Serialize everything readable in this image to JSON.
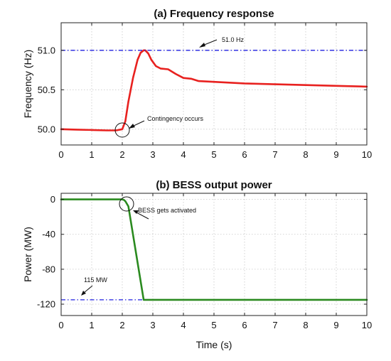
{
  "chart_data": [
    {
      "type": "line",
      "title": "(a) Frequency response",
      "xlabel": "",
      "ylabel": "Frequency (Hz)",
      "xlim": [
        0,
        10
      ],
      "ylim": [
        49.8,
        51.35
      ],
      "xticks": [
        "0",
        "1",
        "2",
        "3",
        "4",
        "5",
        "6",
        "7",
        "8",
        "9",
        "10"
      ],
      "yticks": [
        "50.0",
        "50.5",
        "51.0"
      ],
      "ytick_values": [
        50.0,
        50.5,
        51.0
      ],
      "grid": true,
      "series": [
        {
          "color": "#e8211f",
          "style": "solid",
          "x": [
            0,
            0.5,
            1.0,
            1.5,
            1.8,
            2.0,
            2.1,
            2.2,
            2.35,
            2.5,
            2.6,
            2.7,
            2.75,
            2.85,
            2.95,
            3.1,
            3.25,
            3.5,
            3.75,
            4.0,
            4.25,
            4.5,
            5.0,
            6.0,
            7.0,
            8.0,
            9.0,
            10.0
          ],
          "y": [
            50.0,
            49.995,
            49.99,
            49.985,
            49.985,
            50.0,
            50.1,
            50.35,
            50.65,
            50.88,
            50.97,
            51.0,
            51.0,
            50.96,
            50.88,
            50.8,
            50.77,
            50.76,
            50.7,
            50.65,
            50.64,
            50.61,
            50.6,
            50.58,
            50.57,
            50.56,
            50.55,
            50.54
          ]
        },
        {
          "color": "#1f1fe0",
          "style": "dashdot",
          "x": [
            0,
            10
          ],
          "y": [
            51.0,
            51.0
          ]
        }
      ],
      "annotations": [
        {
          "text": "51.0 Hz",
          "x": 5.3,
          "y": 51.1
        },
        {
          "text": "Contingency occurs",
          "x": 2.8,
          "y": 50.08
        }
      ]
    },
    {
      "type": "line",
      "title": "(b) BESS output power",
      "xlabel": "Time (s)",
      "ylabel": "Power (MW)",
      "xlim": [
        0,
        10
      ],
      "ylim": [
        -133,
        7
      ],
      "xticks": [
        "0",
        "1",
        "2",
        "3",
        "4",
        "5",
        "6",
        "7",
        "8",
        "9",
        "10"
      ],
      "yticks": [
        "0",
        "-40",
        "-80",
        "-120"
      ],
      "ytick_values": [
        0,
        -40,
        -80,
        -120
      ],
      "grid": true,
      "series": [
        {
          "color": "#2a8a1f",
          "style": "solid",
          "x": [
            0,
            1.9,
            2.0,
            2.05,
            2.1,
            2.2,
            2.7,
            10
          ],
          "y": [
            0,
            0,
            0,
            -0.5,
            -2,
            -8,
            -115,
            -115
          ]
        },
        {
          "color": "#1f1fe0",
          "style": "dashdot",
          "x": [
            0,
            2.7
          ],
          "y": [
            -115,
            -115
          ]
        }
      ],
      "annotations": [
        {
          "text": "BESS gets activated",
          "x": 2.5,
          "y": -4
        },
        {
          "text": "115 MW",
          "x": 0.6,
          "y": -96
        }
      ]
    }
  ]
}
